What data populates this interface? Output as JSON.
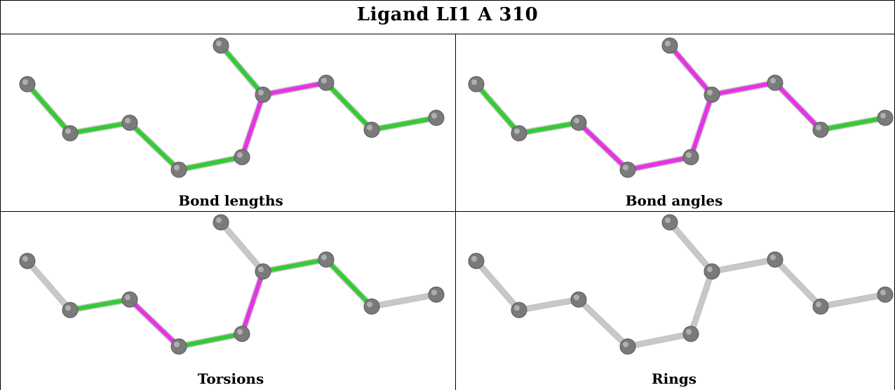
{
  "title": "Ligand LI1 A 310",
  "colors": {
    "green": "#33cc33",
    "magenta": "#e633e6",
    "gray_bond": "#c8c8c8",
    "atom": "#7a7a7a"
  },
  "panels": [
    {
      "caption": "Bond lengths",
      "bonds": [
        "green",
        "green",
        "green",
        "green",
        "magenta",
        "magenta",
        "green",
        "magenta",
        "green",
        "green"
      ]
    },
    {
      "caption": "Bond angles",
      "bonds": [
        "green",
        "green",
        "magenta",
        "magenta",
        "magenta",
        "magenta",
        "magenta",
        "magenta",
        "magenta",
        "green"
      ]
    },
    {
      "caption": "Torsions",
      "bonds": [
        "gray_bond",
        "green",
        "magenta",
        "green",
        "magenta",
        "gray_bond",
        "green",
        "green",
        "green",
        "gray_bond"
      ]
    },
    {
      "caption": "Rings",
      "bonds": [
        "gray_bond",
        "gray_bond",
        "gray_bond",
        "gray_bond",
        "gray_bond",
        "gray_bond",
        "gray_bond",
        "gray_bond",
        "gray_bond",
        "gray_bond"
      ]
    }
  ]
}
